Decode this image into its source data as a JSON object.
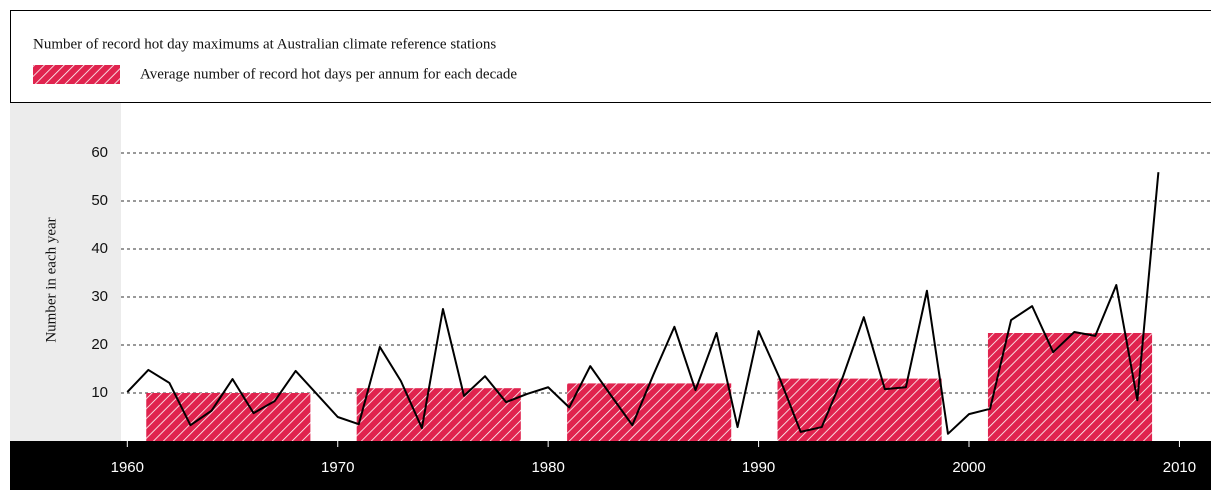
{
  "chart_data": {
    "type": "bar_line",
    "title": "Number of record hot day maximums at Australian climate reference stations",
    "ylabel": "Number in each year",
    "xlim": [
      1959.7,
      2011.5
    ],
    "xticks": [
      1960,
      1970,
      1980,
      1990,
      2000,
      2010
    ],
    "ylim": [
      0,
      65
    ],
    "yticks": [
      10,
      20,
      30,
      40,
      50,
      60
    ],
    "grid": true,
    "series": [
      {
        "name": "Average number of record hot days per annum for each decade",
        "type": "bar",
        "color": "#e0234e",
        "x": [
          1964.8,
          1974.8,
          1984.8,
          1994.8,
          2004.8
        ],
        "values": [
          10,
          11,
          12,
          13,
          22.5
        ]
      },
      {
        "type": "line",
        "color": "#000000",
        "x": [
          1960,
          1961,
          1962,
          1963,
          1964,
          1965,
          1966,
          1967,
          1968,
          1969,
          1970,
          1971,
          1972,
          1973,
          1974,
          1975,
          1976,
          1977,
          1978,
          1979,
          1980,
          1981,
          1982,
          1983,
          1984,
          1985,
          1986,
          1987,
          1988,
          1989,
          1990,
          1991,
          1992,
          1993,
          1994,
          1995,
          1996,
          1997,
          1998,
          1999,
          2000,
          2001,
          2002,
          2003,
          2004,
          2005,
          2006,
          2007,
          2008,
          2009
        ],
        "values": [
          10.2,
          14.8,
          12.1,
          3.3,
          6.3,
          12.9,
          5.8,
          8.3,
          14.6,
          9.8,
          5,
          3.5,
          19.6,
          12.5,
          2.7,
          27.5,
          9.4,
          13.5,
          8.1,
          9.8,
          11.2,
          7,
          15.6,
          9.4,
          3.3,
          13.8,
          23.8,
          10.6,
          22.5,
          2.9,
          22.9,
          13.1,
          1.9,
          2.9,
          13.3,
          25.8,
          10.8,
          11.2,
          31.3,
          1.5,
          5.6,
          6.7,
          25.2,
          28.1,
          18.5,
          22.7,
          21.9,
          32.5,
          8.5,
          56
        ]
      }
    ]
  }
}
